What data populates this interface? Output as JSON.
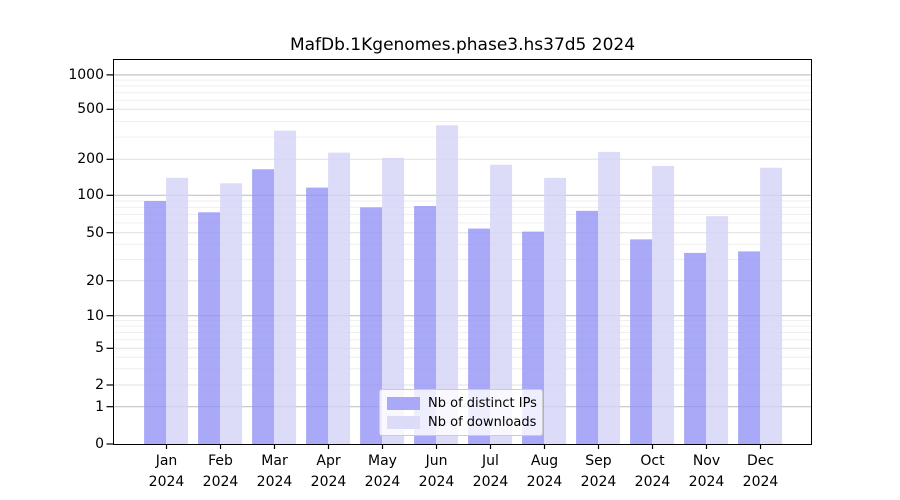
{
  "title": "MafDb.1Kgenomes.phase3.hs37d5 2024",
  "legend": {
    "items": [
      {
        "label": "Nb of distinct IPs",
        "color": "#a9a9f7"
      },
      {
        "label": "Nb of downloads",
        "color": "#dcdcf9"
      }
    ],
    "position": "lower center"
  },
  "chart_data": {
    "type": "bar",
    "title": "MafDb.1Kgenomes.phase3.hs37d5 2024",
    "categories": [
      "Jan 2024",
      "Feb 2024",
      "Mar 2024",
      "Apr 2024",
      "May 2024",
      "Jun 2024",
      "Jul 2024",
      "Aug 2024",
      "Sep 2024",
      "Oct 2024",
      "Nov 2024",
      "Dec 2024"
    ],
    "x_tick_month_labels": [
      "Jan",
      "Feb",
      "Mar",
      "Apr",
      "May",
      "Jun",
      "Jul",
      "Aug",
      "Sep",
      "Oct",
      "Nov",
      "Dec"
    ],
    "x_tick_year_label": "2024",
    "series": [
      {
        "name": "Nb of distinct IPs",
        "color": "#a9a9f7",
        "base_color": "#9494f6",
        "values": [
          90,
          73,
          165,
          116,
          80,
          82,
          54,
          51,
          75,
          44,
          34,
          35
        ]
      },
      {
        "name": "Nb of downloads",
        "color": "#dcdcf9",
        "base_color": "#d3d3f8",
        "values": [
          140,
          126,
          338,
          226,
          205,
          373,
          180,
          140,
          229,
          176,
          68,
          170
        ]
      }
    ],
    "xlabel": "",
    "ylabel": "",
    "yscale": "symlog",
    "yticks": [
      0,
      1,
      2,
      5,
      10,
      20,
      50,
      100,
      200,
      500,
      1000
    ],
    "ylim": [
      0,
      1400
    ],
    "grid": true,
    "legend_position": "lower center",
    "colors": {
      "major_grid": "#c3c3c3",
      "sub_grid": "#e0e0e0",
      "minor_grid": "#efefef",
      "spine": "#000000",
      "text": "#000000",
      "background": "#ffffff"
    }
  }
}
